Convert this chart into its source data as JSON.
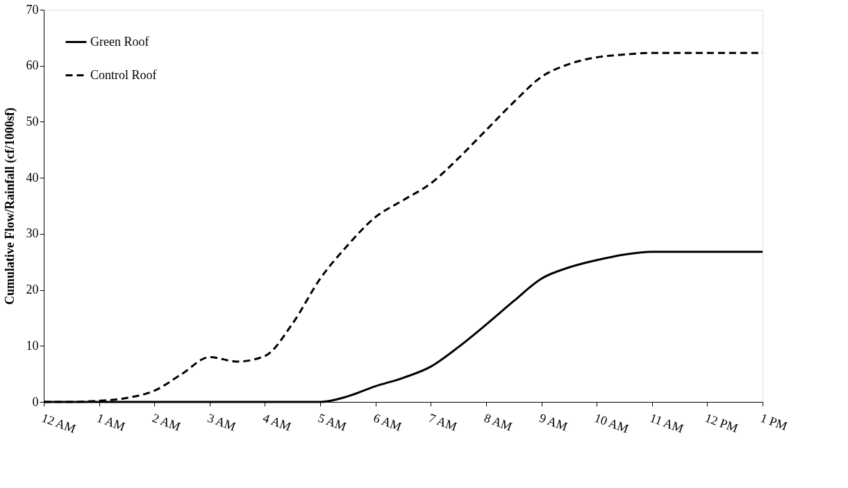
{
  "chart_data": {
    "type": "line",
    "ylabel": "Cumulative Flow/Rainfall (cf/1000sf)",
    "categories": [
      "12 AM",
      null,
      "1 AM",
      null,
      "2 AM",
      null,
      "3 AM",
      null,
      "4 AM",
      null,
      "5 AM",
      null,
      "6 AM",
      null,
      "7 AM",
      null,
      "8 AM",
      null,
      "9 AM",
      null,
      "10 AM",
      null,
      "11 AM",
      null,
      "12 PM",
      null,
      "1 PM"
    ],
    "series": [
      {
        "name": "Green Roof",
        "color": "#000000",
        "line_style": "solid",
        "values": [
          0,
          0,
          0,
          0,
          0,
          0,
          0,
          0,
          0,
          0,
          0,
          1,
          2.8,
          4.3,
          6.3,
          9.8,
          13.8,
          18,
          22,
          24,
          25.3,
          26.3,
          26.8,
          26.8,
          26.8,
          26.8,
          26.8
        ]
      },
      {
        "name": "Control Roof",
        "color": "#000000",
        "line_style": "dashed",
        "values": [
          0,
          0,
          0.2,
          0.7,
          2,
          5,
          8,
          7.2,
          8.2,
          14,
          22,
          28,
          33,
          36,
          39,
          43.5,
          48.5,
          53.5,
          58,
          60.3,
          61.5,
          62,
          62.3,
          62.3,
          62.3,
          62.3,
          62.3
        ]
      }
    ],
    "ylim": [
      0,
      70
    ],
    "yticks": [
      0,
      10,
      20,
      30,
      40,
      50,
      60,
      70
    ],
    "grid": false,
    "legend": "top left",
    "marker": "none"
  }
}
